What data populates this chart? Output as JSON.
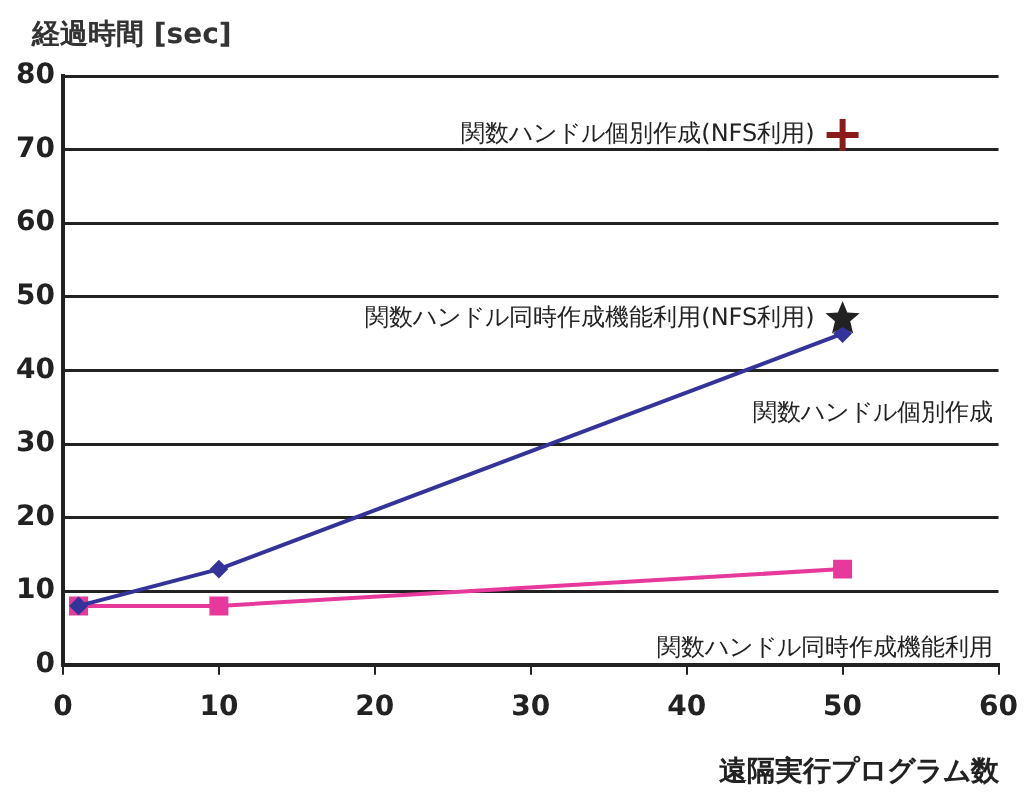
{
  "chart_data": {
    "type": "line",
    "ylabel": "経過時間 [sec]",
    "xlabel": "遠隔実行プログラム数",
    "xlim": [
      0,
      60
    ],
    "xticks": [
      0,
      10,
      20,
      30,
      40,
      50,
      60
    ],
    "ylim": [
      0,
      80
    ],
    "yticks": [
      0,
      10,
      20,
      30,
      40,
      50,
      60,
      70,
      80
    ],
    "grid": "y",
    "legend": false,
    "series": [
      {
        "name": "関数ハンドル個別作成",
        "color": "#333399",
        "x": [
          1,
          10,
          50
        ],
        "values": [
          8,
          13,
          45
        ],
        "marker": "diamond"
      },
      {
        "name": "関数ハンドル同時作成機能利用",
        "color": "#e6399b",
        "x": [
          1,
          10,
          50
        ],
        "values": [
          8,
          8,
          13
        ],
        "marker": "square"
      },
      {
        "type": "scatter",
        "name": "関数ハンドル個別作成(NFS利用)",
        "color": "#8b1a1a",
        "x": [
          50
        ],
        "values": [
          72
        ],
        "marker": "cross"
      },
      {
        "type": "scatter",
        "name": "関数ハンドル同時作成機能利用(NFS利用)",
        "color": "#222222",
        "x": [
          50
        ],
        "values": [
          47
        ],
        "marker": "star"
      }
    ]
  }
}
